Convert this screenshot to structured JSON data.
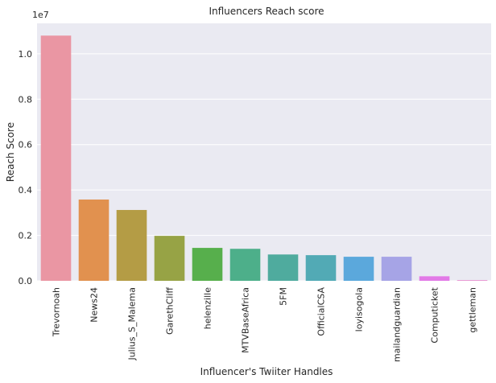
{
  "chart_data": {
    "type": "bar",
    "title": "Influencers Reach score",
    "xlabel": "Influencer's Twiiter Handles",
    "ylabel": "Reach Score",
    "offset_text": "1e7",
    "categories": [
      "Trevornoah",
      "News24",
      "Julius_S_Malema",
      "GarethCliff",
      "helenzille",
      "MTVBaseAfrica",
      "5FM",
      "OfficialCSA",
      "loyisogola",
      "mailandguardian",
      "Computicket",
      "gettleman"
    ],
    "values": [
      10800000,
      3580000,
      3120000,
      1980000,
      1450000,
      1410000,
      1160000,
      1130000,
      1060000,
      1060000,
      200000,
      30000
    ],
    "colors": [
      "#ea96a3",
      "#e1914f",
      "#b49c45",
      "#97a345",
      "#57af4c",
      "#4daf8a",
      "#4fab9e",
      "#52aab5",
      "#5ba8dc",
      "#a6a4e6",
      "#e27ae7",
      "#e88ccf"
    ],
    "yticks": [
      0.0,
      0.2,
      0.4,
      0.6,
      0.8,
      1.0
    ],
    "yscale": 10000000,
    "ylim": [
      0,
      11340000
    ],
    "grid": true,
    "legend": "none"
  }
}
